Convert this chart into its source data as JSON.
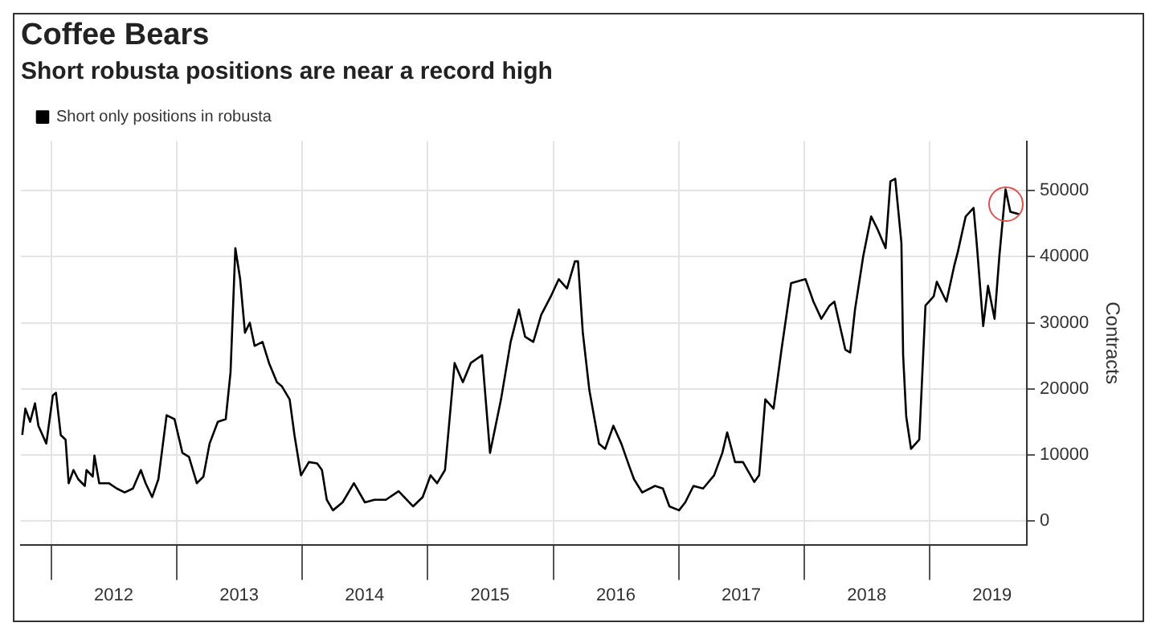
{
  "chart_data": {
    "type": "line",
    "title": "Coffee Bears",
    "subtitle": "Short robusta positions are near a record high",
    "ylabel": "Contracts",
    "x": [
      "2011-10-09",
      "2011-10-18",
      "2011-11-01",
      "2011-11-15",
      "2011-11-25",
      "2011-12-18",
      "2012-01-06",
      "2012-01-15",
      "2012-01-29",
      "2012-02-12",
      "2012-02-21",
      "2012-03-06",
      "2012-03-20",
      "2012-04-08",
      "2012-04-13",
      "2012-05-01",
      "2012-05-06",
      "2012-05-20",
      "2012-06-17",
      "2012-07-10",
      "2012-08-02",
      "2012-08-26",
      "2012-09-18",
      "2012-10-02",
      "2012-10-21",
      "2012-11-08",
      "2012-12-02",
      "2012-12-25",
      "2013-01-17",
      "2013-02-05",
      "2013-02-28",
      "2013-03-19",
      "2013-04-06",
      "2013-04-30",
      "2013-05-23",
      "2013-06-06",
      "2013-06-20",
      "2013-07-04",
      "2013-07-18",
      "2013-08-01",
      "2013-08-15",
      "2013-09-07",
      "2013-09-26",
      "2013-10-19",
      "2013-11-02",
      "2013-11-25",
      "2013-12-09",
      "2013-12-28",
      "2014-01-20",
      "2014-02-13",
      "2014-02-27",
      "2014-03-13",
      "2014-03-31",
      "2014-04-28",
      "2014-05-31",
      "2014-07-02",
      "2014-07-30",
      "2014-09-01",
      "2014-10-08",
      "2014-11-19",
      "2014-12-17",
      "2015-01-09",
      "2015-01-28",
      "2015-02-20",
      "2015-03-06",
      "2015-03-20",
      "2015-04-13",
      "2015-05-06",
      "2015-06-08",
      "2015-07-01",
      "2015-08-02",
      "2015-08-30",
      "2015-09-23",
      "2015-10-11",
      "2015-11-04",
      "2015-11-27",
      "2015-12-25",
      "2016-01-17",
      "2016-02-10",
      "2016-03-04",
      "2016-03-13",
      "2016-03-27",
      "2016-04-15",
      "2016-05-13",
      "2016-05-31",
      "2016-06-24",
      "2016-07-17",
      "2016-08-09",
      "2016-08-23",
      "2016-09-16",
      "2016-10-23",
      "2016-11-15",
      "2016-12-04",
      "2017-01-01",
      "2017-01-19",
      "2017-02-12",
      "2017-03-12",
      "2017-04-13",
      "2017-05-07",
      "2017-05-21",
      "2017-06-13",
      "2017-07-06",
      "2017-08-08",
      "2017-08-22",
      "2017-09-09",
      "2017-10-03",
      "2017-10-26",
      "2017-11-23",
      "2018-01-04",
      "2018-01-27",
      "2018-02-19",
      "2018-03-15",
      "2018-03-29",
      "2018-04-30",
      "2018-05-14",
      "2018-05-28",
      "2018-06-21",
      "2018-07-14",
      "2018-08-02",
      "2018-08-25",
      "2018-09-08",
      "2018-09-22",
      "2018-10-10",
      "2018-10-15",
      "2018-10-24",
      "2018-11-07",
      "2018-12-01",
      "2018-12-19",
      "2019-01-12",
      "2019-01-21",
      "2019-02-18",
      "2019-03-13",
      "2019-03-23",
      "2019-04-15",
      "2019-05-08",
      "2019-05-17",
      "2019-06-05",
      "2019-06-19",
      "2019-07-08",
      "2019-07-22",
      "2019-08-09",
      "2019-08-23",
      "2019-09-20"
    ],
    "series": [
      {
        "name": "Short only positions in robusta",
        "color": "#000000",
        "values": [
          13000,
          17000,
          15000,
          17800,
          14400,
          11700,
          19000,
          19400,
          13000,
          12300,
          5700,
          7700,
          6300,
          5300,
          7700,
          6700,
          9900,
          5700,
          5700,
          4900,
          4300,
          4900,
          7700,
          5700,
          3600,
          6300,
          16000,
          15400,
          10300,
          9700,
          5700,
          6700,
          11700,
          15000,
          15400,
          22500,
          41300,
          36600,
          28500,
          30000,
          26500,
          27100,
          23900,
          21000,
          20400,
          18400,
          13000,
          6900,
          8900,
          8700,
          7700,
          3200,
          1600,
          2800,
          5700,
          2800,
          3200,
          3200,
          4500,
          2200,
          3600,
          6900,
          5700,
          7700,
          15800,
          23900,
          21000,
          23900,
          25100,
          10300,
          18400,
          27100,
          32000,
          27900,
          27100,
          31200,
          34000,
          36600,
          35200,
          39300,
          39300,
          28500,
          19800,
          11700,
          10900,
          14400,
          11700,
          8300,
          6300,
          4300,
          5300,
          4900,
          2200,
          1600,
          2800,
          5300,
          4900,
          6900,
          10300,
          13400,
          8900,
          8900,
          5900,
          6900,
          18400,
          17000,
          25900,
          36000,
          36600,
          33200,
          30600,
          32600,
          33200,
          25900,
          25500,
          32000,
          40100,
          46100,
          44100,
          41300,
          51400,
          51800,
          42100,
          25100,
          15800,
          10900,
          12300,
          32600,
          34000,
          36200,
          33200,
          38700,
          40700,
          46100,
          47400,
          42100,
          29500,
          35600,
          30600,
          40100,
          50200,
          46800,
          46400
        ]
      }
    ],
    "xlim": [
      "2011-10-05",
      "2019-10-10"
    ],
    "xticks": [
      {
        "value": "2012-01-01",
        "label": null
      },
      {
        "value": "2012-07-01",
        "label": "2012"
      },
      {
        "value": "2013-01-01",
        "label": null
      },
      {
        "value": "2013-07-01",
        "label": "2013"
      },
      {
        "value": "2014-01-01",
        "label": null
      },
      {
        "value": "2014-07-01",
        "label": "2014"
      },
      {
        "value": "2015-01-01",
        "label": null
      },
      {
        "value": "2015-07-01",
        "label": "2015"
      },
      {
        "value": "2016-01-01",
        "label": null
      },
      {
        "value": "2016-07-01",
        "label": "2016"
      },
      {
        "value": "2017-01-01",
        "label": null
      },
      {
        "value": "2017-07-01",
        "label": "2017"
      },
      {
        "value": "2018-01-01",
        "label": null
      },
      {
        "value": "2018-07-01",
        "label": "2018"
      },
      {
        "value": "2019-01-01",
        "label": null
      },
      {
        "value": "2019-07-01",
        "label": "2019"
      }
    ],
    "ylim": [
      -3600,
      57500
    ],
    "yticks": [
      0,
      10000,
      20000,
      30000,
      40000,
      50000
    ],
    "grid": true,
    "legend": "top left",
    "marker": "none",
    "line_style": "solid"
  }
}
